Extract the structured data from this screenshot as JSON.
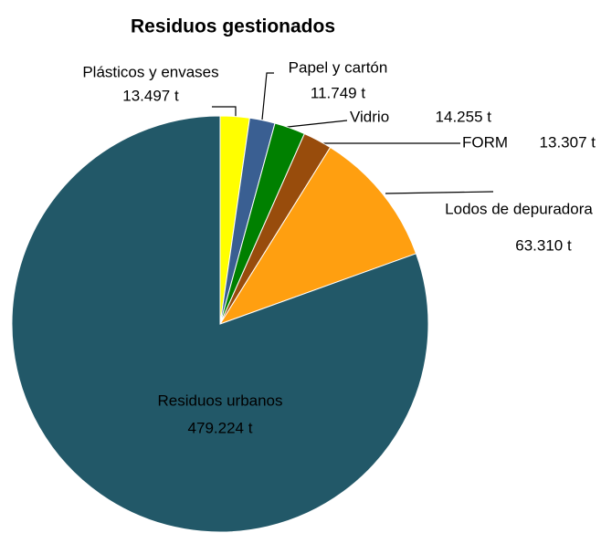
{
  "chart_data": {
    "type": "pie",
    "title": "Residuos gestionados",
    "categories": [
      "Plásticos y envases",
      "Papel y cartón",
      "Vidrio",
      "FORM",
      "Lodos de depuradora",
      "Residuos urbanos"
    ],
    "values": [
      13497,
      11749,
      14255,
      13307,
      63310,
      479224
    ],
    "value_labels": [
      "13.497 t",
      "11.749 t",
      "14.255 t",
      "13.307 t",
      "63.310 t",
      "479.224 t"
    ],
    "colors": [
      "#ffff00",
      "#3a5f92",
      "#008000",
      "#984c0c",
      "#ff9f10",
      "#225868"
    ]
  }
}
